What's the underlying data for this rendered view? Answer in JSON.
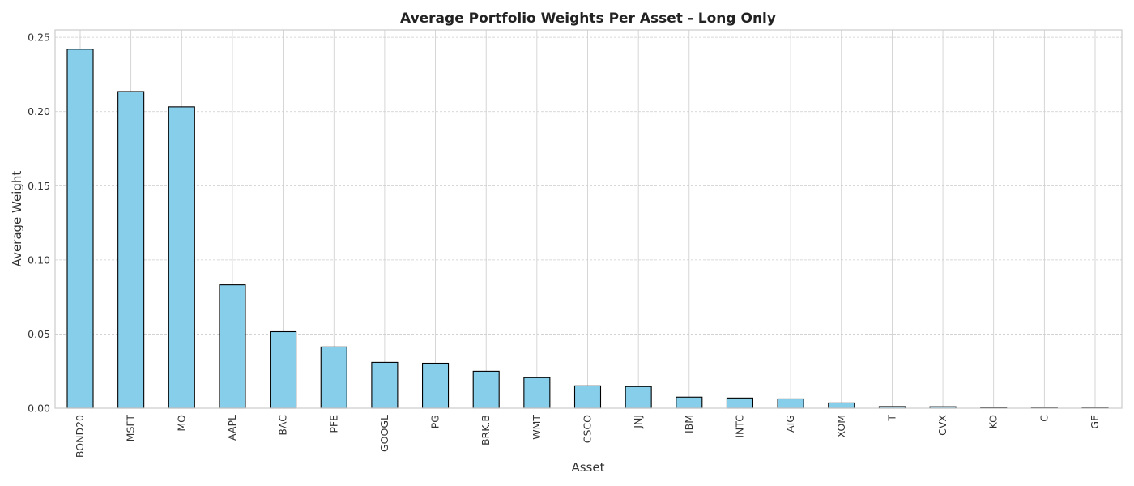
{
  "chart_data": {
    "type": "bar",
    "title": "Average Portfolio Weights Per Asset - Long Only",
    "xlabel": "Asset",
    "ylabel": "Average Weight",
    "ylim": [
      0,
      0.255
    ],
    "yticks": [
      0.0,
      0.05,
      0.1,
      0.15,
      0.2,
      0.25
    ],
    "ytick_labels": [
      "0.00",
      "0.05",
      "0.10",
      "0.15",
      "0.20",
      "0.25"
    ],
    "grid": true,
    "bar_color": "#87CEEB",
    "edge_color": "#000000",
    "categories": [
      "BOND20",
      "MSFT",
      "MO",
      "AAPL",
      "BAC",
      "PFE",
      "GOOGL",
      "PG",
      "BRK.B",
      "WMT",
      "CSCO",
      "JNJ",
      "IBM",
      "INTC",
      "AIG",
      "XOM",
      "T",
      "CVX",
      "KO",
      "C",
      "GE"
    ],
    "values": [
      0.242,
      0.2135,
      0.2032,
      0.0832,
      0.0516,
      0.0413,
      0.0309,
      0.0303,
      0.0249,
      0.0206,
      0.0151,
      0.0146,
      0.0075,
      0.0069,
      0.0063,
      0.0036,
      0.0011,
      0.001,
      0.0005,
      0.0002,
      0.0002
    ]
  }
}
